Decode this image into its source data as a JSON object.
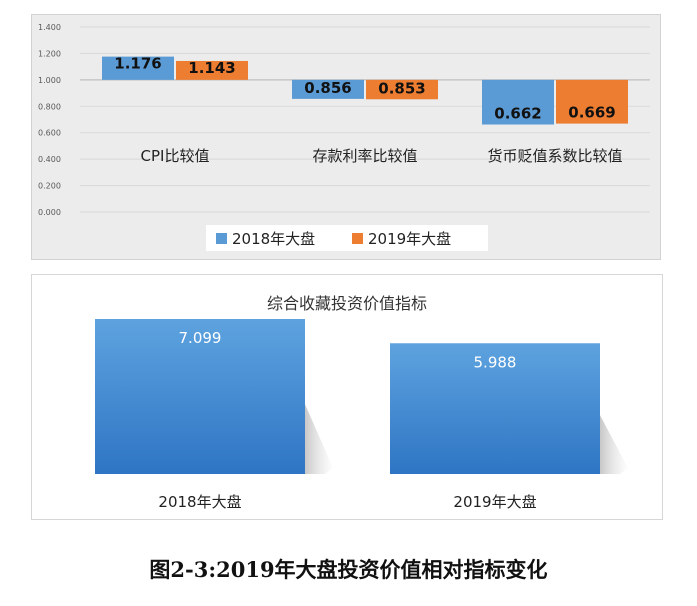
{
  "caption": "图2-3:2019年大盘投资价值相对指标变化",
  "colors": {
    "s2018": "#5b9bd5",
    "s2019": "#ed7d31"
  },
  "chart_data": [
    {
      "type": "bar",
      "title": "",
      "categories": [
        "CPI比较值",
        "存款利率比较值",
        "货币贬值系数比较值"
      ],
      "series": [
        {
          "name": "2018年大盘",
          "values": [
            1.176,
            0.856,
            0.662
          ],
          "labels": [
            "1.176",
            "0.856",
            "0.662"
          ]
        },
        {
          "name": "2019年大盘",
          "values": [
            1.143,
            0.853,
            0.669
          ],
          "labels": [
            "1.143",
            "0.853",
            "0.669"
          ]
        }
      ],
      "baseline": 1.0,
      "ylim": [
        0,
        1.4
      ],
      "yticks": [
        "0.000",
        "0.200",
        "0.400",
        "0.600",
        "0.800",
        "1.000",
        "1.200",
        "1.400"
      ],
      "grid": true,
      "legend": "bottom"
    },
    {
      "type": "bar",
      "title": "综合收藏投资价值指标",
      "categories": [
        "2018年大盘",
        "2019年大盘"
      ],
      "values": [
        7.099,
        5.988
      ],
      "labels": [
        "7.099",
        "5.988"
      ]
    }
  ]
}
